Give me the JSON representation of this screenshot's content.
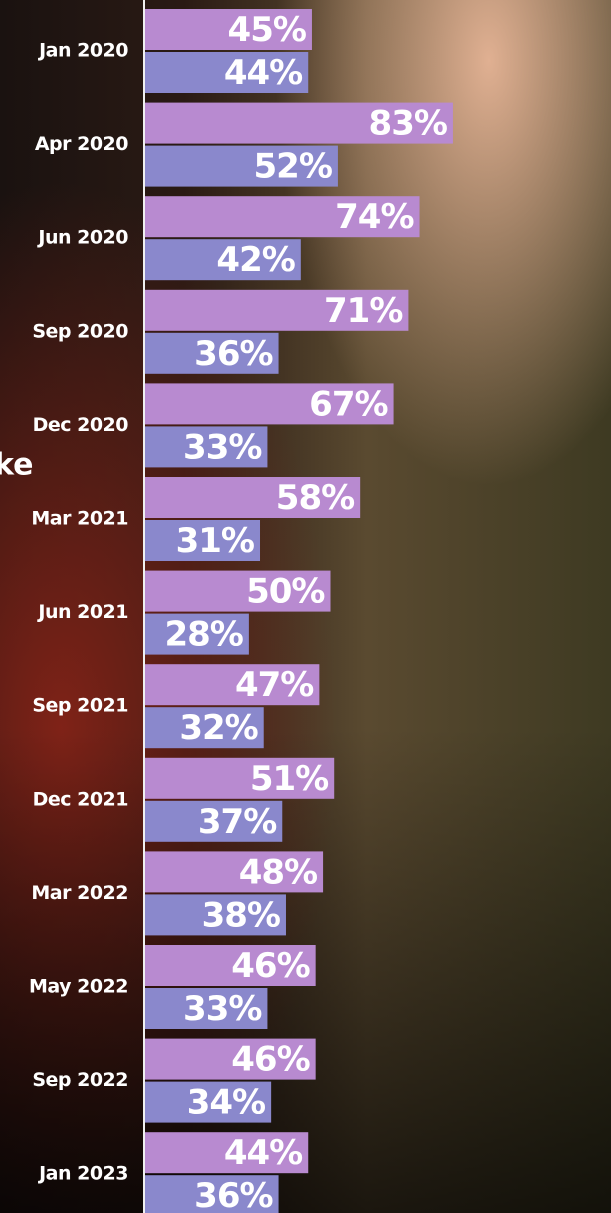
{
  "chart_data": {
    "type": "bar",
    "orientation": "horizontal",
    "annotation": "ke",
    "categories": [
      "Jan 2020",
      "Apr 2020",
      "Jun 2020",
      "Sep 2020",
      "Dec 2020",
      "Mar 2021",
      "Jun 2021",
      "Sep 2021",
      "Dec 2021",
      "Mar 2022",
      "May 2022",
      "Sep 2022",
      "Jan 2023"
    ],
    "series": [
      {
        "color": "#b88ad0",
        "values": [
          45,
          83,
          74,
          71,
          67,
          58,
          50,
          47,
          51,
          48,
          46,
          46,
          44
        ],
        "value_labels": [
          "45%",
          "83%",
          "74%",
          "71%",
          "67%",
          "58%",
          "50%",
          "47%",
          "51%",
          "48%",
          "46%",
          "46%",
          "44%"
        ]
      },
      {
        "color": "#8a88cc",
        "values": [
          44,
          52,
          42,
          36,
          33,
          31,
          28,
          32,
          37,
          38,
          33,
          34,
          36
        ],
        "value_labels": [
          "44%",
          "52%",
          "42%",
          "36%",
          "33%",
          "31%",
          "28%",
          "32%",
          "37%",
          "38%",
          "33%",
          "34%",
          "36%"
        ]
      }
    ]
  }
}
